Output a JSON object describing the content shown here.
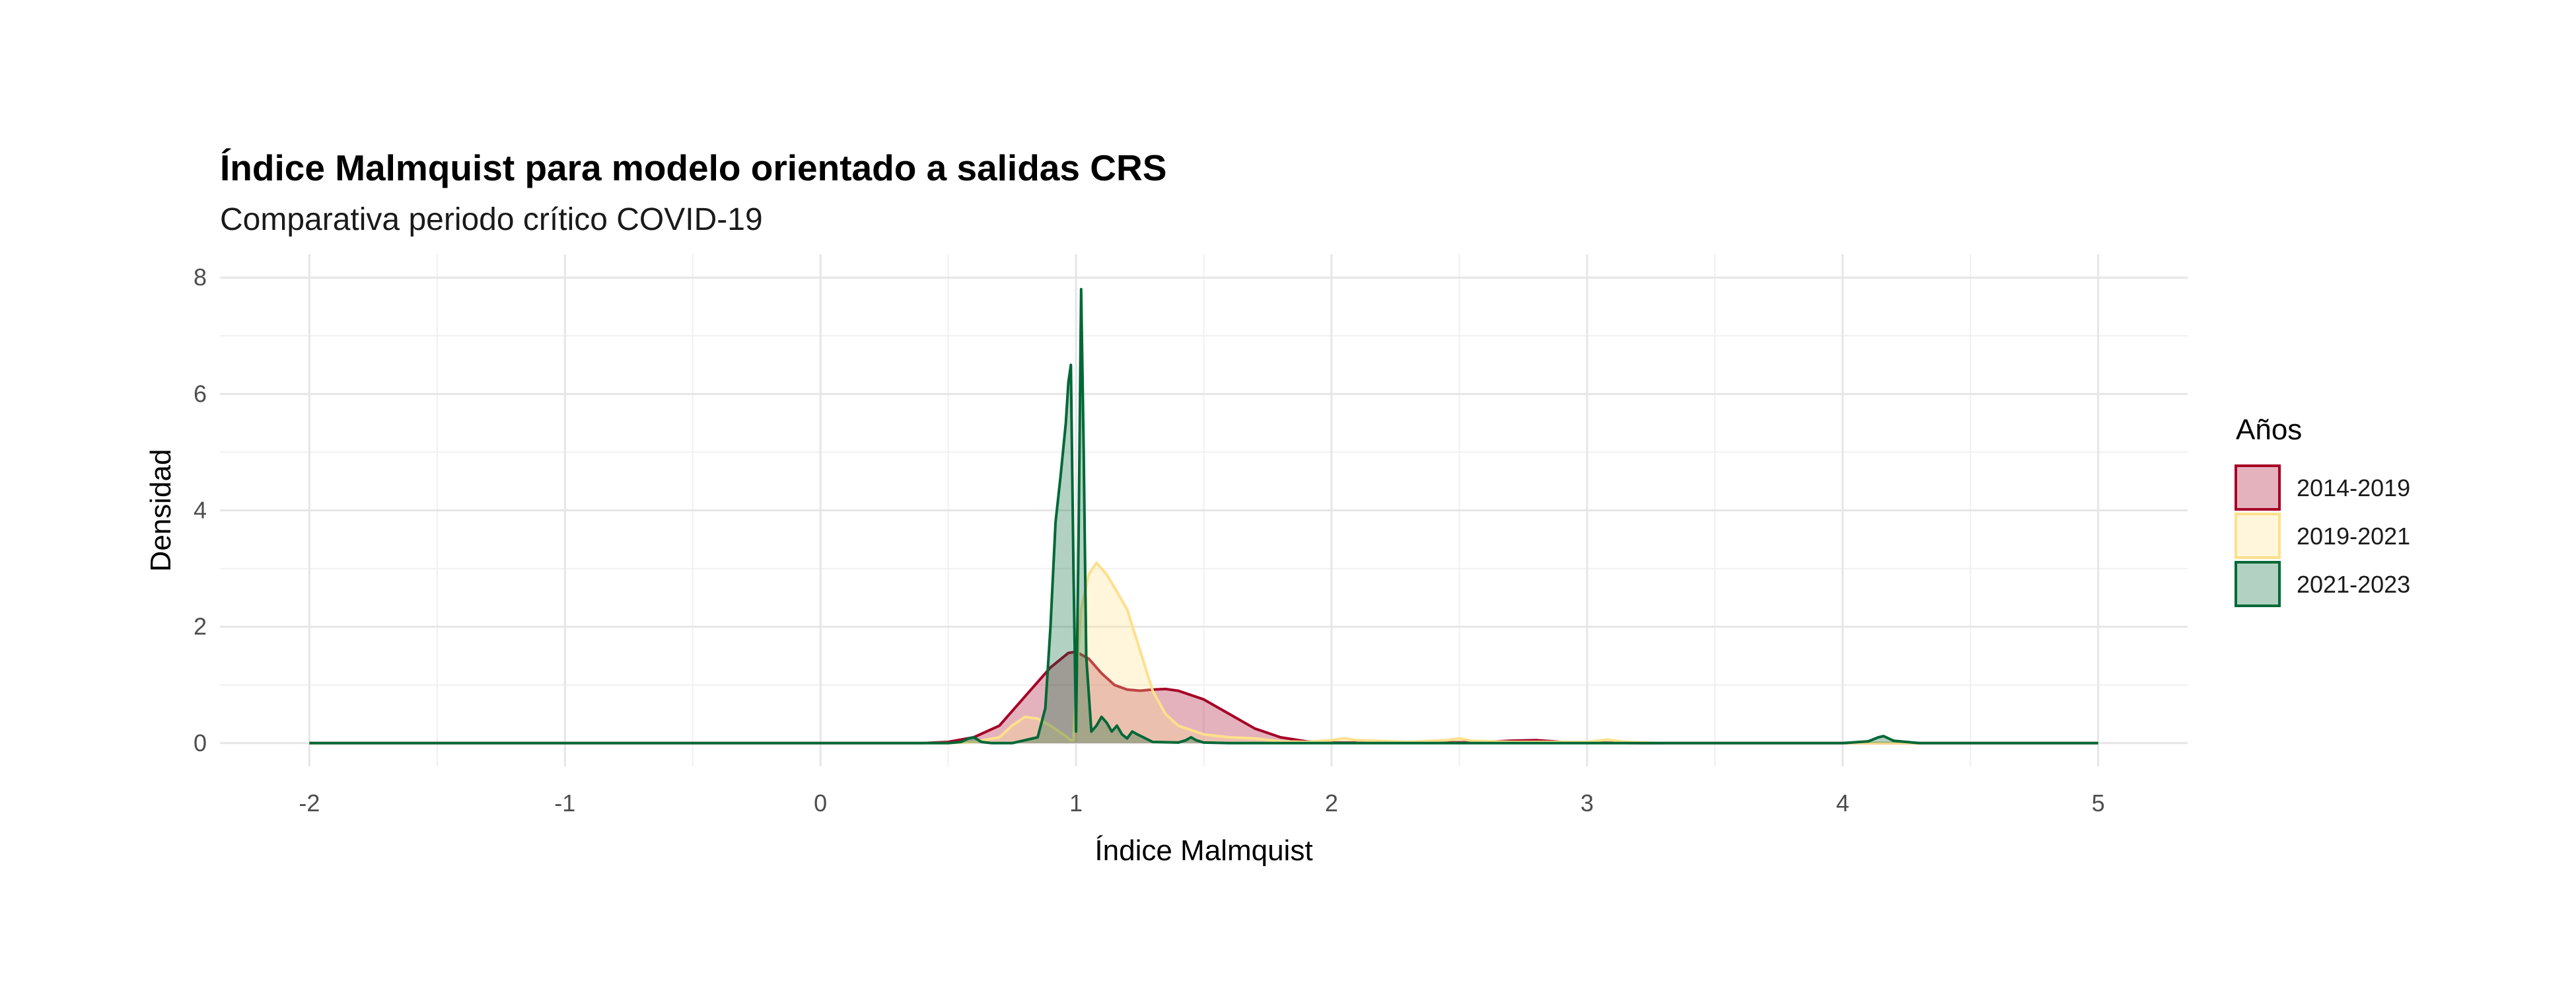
{
  "chart_data": {
    "type": "area",
    "title": "Índice Malmquist para modelo orientado a salidas CRS",
    "subtitle": "Comparativa periodo crítico COVID-19",
    "xlabel": "Índice Malmquist",
    "ylabel": "Densidad",
    "xlim": [
      -2.35,
      5.35
    ],
    "ylim": [
      -0.4,
      8.4
    ],
    "x_ticks": [
      -2,
      -1,
      0,
      1,
      2,
      3,
      4,
      5
    ],
    "y_ticks": [
      0,
      2,
      4,
      6,
      8
    ],
    "grid": true,
    "legend": {
      "title": "Años",
      "position": "right"
    },
    "series": [
      {
        "name": "2014-2019",
        "stroke": "#a50026",
        "fill": "#a50026",
        "fill_opacity": 0.3,
        "x": [
          -2,
          0.4,
          0.5,
          0.6,
          0.7,
          0.8,
          0.9,
          0.97,
          1.0,
          1.05,
          1.1,
          1.15,
          1.2,
          1.25,
          1.3,
          1.35,
          1.4,
          1.5,
          1.6,
          1.7,
          1.8,
          1.9,
          2.0,
          2.2,
          2.4,
          2.6,
          2.7,
          2.8,
          2.9,
          3.0,
          3.2,
          5
        ],
        "y": [
          0,
          0,
          0.02,
          0.1,
          0.3,
          0.8,
          1.3,
          1.55,
          1.57,
          1.45,
          1.2,
          1.0,
          0.92,
          0.9,
          0.92,
          0.93,
          0.9,
          0.75,
          0.5,
          0.25,
          0.1,
          0.03,
          0.01,
          0.01,
          0.01,
          0.02,
          0.04,
          0.05,
          0.02,
          0.01,
          0,
          0
        ]
      },
      {
        "name": "2019-2021",
        "stroke": "#fee08b",
        "fill": "#fee08b",
        "fill_opacity": 0.3,
        "x": [
          -2,
          0.5,
          0.6,
          0.7,
          0.75,
          0.8,
          0.85,
          0.9,
          0.95,
          0.98,
          0.99,
          1.0,
          1.02,
          1.05,
          1.08,
          1.12,
          1.16,
          1.2,
          1.25,
          1.3,
          1.35,
          1.4,
          1.5,
          1.6,
          1.7,
          1.8,
          1.9,
          2.0,
          2.05,
          2.1,
          2.3,
          2.45,
          2.5,
          2.55,
          2.7,
          3.0,
          3.08,
          3.15,
          3.3,
          5
        ],
        "y": [
          0,
          0,
          0.02,
          0.1,
          0.3,
          0.45,
          0.42,
          0.3,
          0.15,
          0.05,
          0.05,
          1.0,
          2.3,
          2.9,
          3.1,
          2.9,
          2.6,
          2.3,
          1.6,
          0.9,
          0.5,
          0.3,
          0.15,
          0.1,
          0.08,
          0.03,
          0.02,
          0.05,
          0.08,
          0.05,
          0.02,
          0.05,
          0.08,
          0.04,
          0.02,
          0.02,
          0.06,
          0.02,
          0,
          0
        ]
      },
      {
        "name": "2021-2023",
        "stroke": "#006837",
        "fill": "#006837",
        "fill_opacity": 0.3,
        "x": [
          -2,
          0.5,
          0.55,
          0.58,
          0.6,
          0.63,
          0.67,
          0.75,
          0.85,
          0.88,
          0.9,
          0.92,
          0.94,
          0.96,
          0.97,
          0.98,
          0.99,
          1.0,
          1.01,
          1.02,
          1.03,
          1.04,
          1.06,
          1.08,
          1.1,
          1.12,
          1.14,
          1.16,
          1.18,
          1.2,
          1.22,
          1.24,
          1.3,
          1.4,
          1.43,
          1.45,
          1.47,
          1.5,
          1.6,
          2.0,
          2.5,
          3.0,
          3.5,
          4.0,
          4.1,
          4.14,
          4.16,
          4.2,
          4.3,
          5
        ],
        "y": [
          0,
          0,
          0.02,
          0.08,
          0.1,
          0.02,
          0,
          0,
          0.1,
          0.6,
          2.0,
          3.8,
          4.6,
          5.5,
          6.2,
          6.5,
          3.0,
          0.2,
          3.5,
          7.8,
          5.0,
          1.5,
          0.2,
          0.3,
          0.45,
          0.35,
          0.2,
          0.3,
          0.15,
          0.08,
          0.2,
          0.15,
          0.02,
          0.01,
          0.05,
          0.1,
          0.05,
          0.01,
          0,
          0,
          0,
          0,
          0,
          0,
          0.03,
          0.1,
          0.12,
          0.04,
          0,
          0
        ]
      }
    ]
  }
}
